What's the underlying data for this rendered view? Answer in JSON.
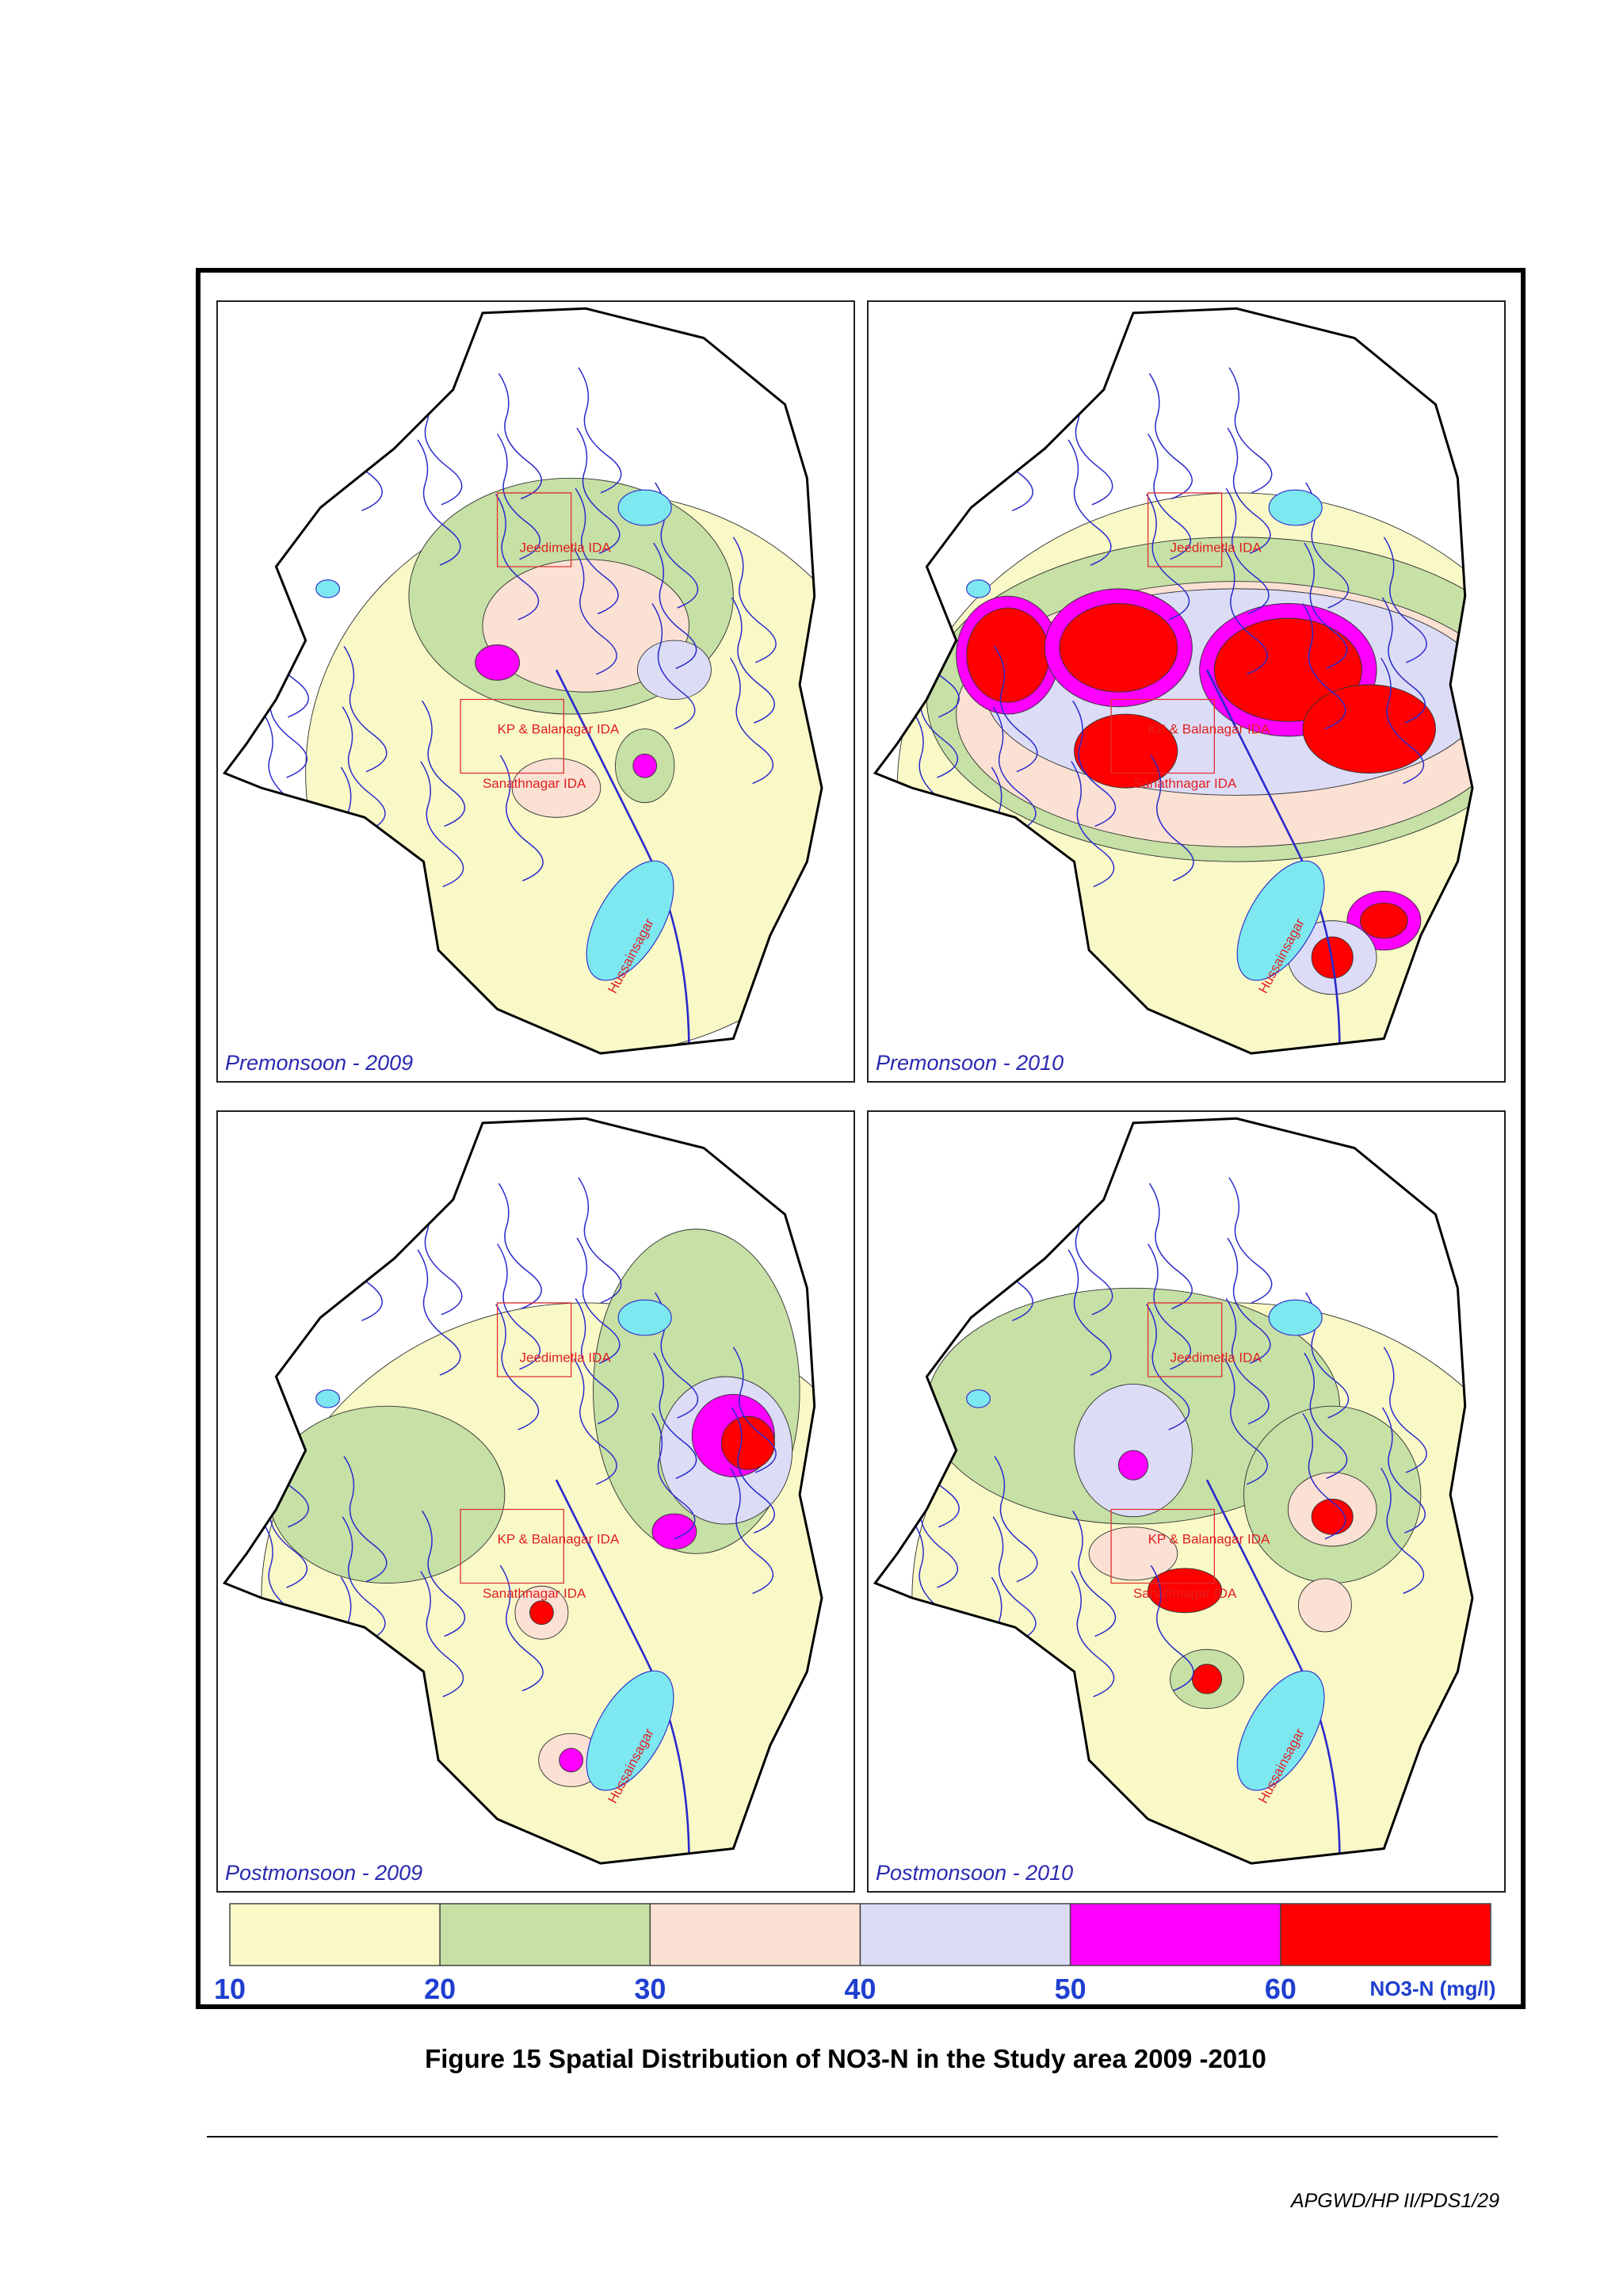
{
  "figure": {
    "panels": [
      {
        "title": "Premonsoon - 2009"
      },
      {
        "title": "Premonsoon - 2010"
      },
      {
        "title": "Postmonsoon - 2009"
      },
      {
        "title": "Postmonsoon - 2010"
      }
    ],
    "map_labels": [
      "Jeedimetla IDA",
      "KP & Balanagar IDA",
      "Sanathnagar IDA",
      "Hussainsagar"
    ],
    "legend": {
      "values": [
        10,
        20,
        30,
        40,
        50,
        60
      ],
      "colors": [
        "#f9f9c8",
        "#c6e0a6",
        "#fbe1d3",
        "#dcdcf6",
        "#ff00ff",
        "#ff0000"
      ],
      "unit": "NO3-N (mg/l)"
    },
    "caption": "Figure 15 Spatial Distribution of NO3-N in the Study area 2009 -2010"
  },
  "footer": "APGWD/HP II/PDS1/29"
}
